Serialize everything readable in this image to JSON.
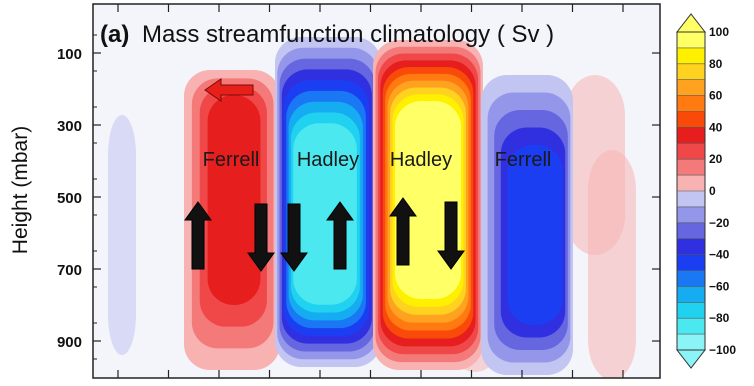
{
  "chart_data": {
    "type": "contour",
    "title": {
      "tag": "(a)",
      "text": "Mass streamfunction climatology ( Sv )"
    },
    "xlabel": "",
    "ylabel": "Height (mbar)",
    "y_ticks": [
      "100",
      "300",
      "500",
      "700",
      "900"
    ],
    "y_tick_values": [
      100,
      300,
      500,
      700,
      900
    ],
    "ylim": [
      1000,
      10
    ],
    "x_tick_count": 12,
    "colorbar": {
      "min": -100,
      "max": 100,
      "step": 10,
      "tick_labels": [
        "100",
        "80",
        "60",
        "40",
        "20",
        "0",
        "−20",
        "−40",
        "−60",
        "−80",
        "−100"
      ],
      "tick_values": [
        100,
        80,
        60,
        40,
        20,
        0,
        -20,
        -40,
        -60,
        -80,
        -100
      ],
      "stops": [
        {
          "v": 100,
          "color": "#ffff66"
        },
        {
          "v": 90,
          "color": "#fff000"
        },
        {
          "v": 80,
          "color": "#ffd21f"
        },
        {
          "v": 70,
          "color": "#ffa21f"
        },
        {
          "v": 60,
          "color": "#ff7a10"
        },
        {
          "v": 50,
          "color": "#fa4a0a"
        },
        {
          "v": 40,
          "color": "#e61e1e"
        },
        {
          "v": 30,
          "color": "#f04848"
        },
        {
          "v": 20,
          "color": "#f47a7a"
        },
        {
          "v": 10,
          "color": "#f8b2b2"
        },
        {
          "v": 0,
          "color": "#ffffff"
        },
        {
          "v": -10,
          "color": "#c2c4f2"
        },
        {
          "v": -20,
          "color": "#9496ea"
        },
        {
          "v": -30,
          "color": "#6566e0"
        },
        {
          "v": -40,
          "color": "#3030e0"
        },
        {
          "v": -50,
          "color": "#1c3ef2"
        },
        {
          "v": -60,
          "color": "#1a78f4"
        },
        {
          "v": -70,
          "color": "#16acf2"
        },
        {
          "v": -80,
          "color": "#20d2f0"
        },
        {
          "v": -90,
          "color": "#4ce8f0"
        },
        {
          "v": -100,
          "color": "#8af4f6"
        }
      ]
    },
    "cells": [
      {
        "label": "Ferrell",
        "sign": "positive",
        "peak": 40
      },
      {
        "label": "Hadley",
        "sign": "negative",
        "peak": -90
      },
      {
        "label": "Hadley",
        "sign": "positive",
        "peak": 100
      },
      {
        "label": "Ferrell",
        "sign": "negative",
        "peak": -50
      }
    ],
    "annotations": [
      {
        "type": "arrow",
        "direction": "left",
        "color": "#e8201a"
      },
      {
        "type": "arrow",
        "direction": "up",
        "color": "#111111"
      },
      {
        "type": "arrow",
        "direction": "down",
        "color": "#111111"
      },
      {
        "type": "arrow",
        "direction": "down",
        "color": "#111111"
      },
      {
        "type": "arrow",
        "direction": "up",
        "color": "#111111"
      },
      {
        "type": "arrow",
        "direction": "up",
        "color": "#111111"
      },
      {
        "type": "arrow",
        "direction": "down",
        "color": "#111111"
      }
    ]
  }
}
